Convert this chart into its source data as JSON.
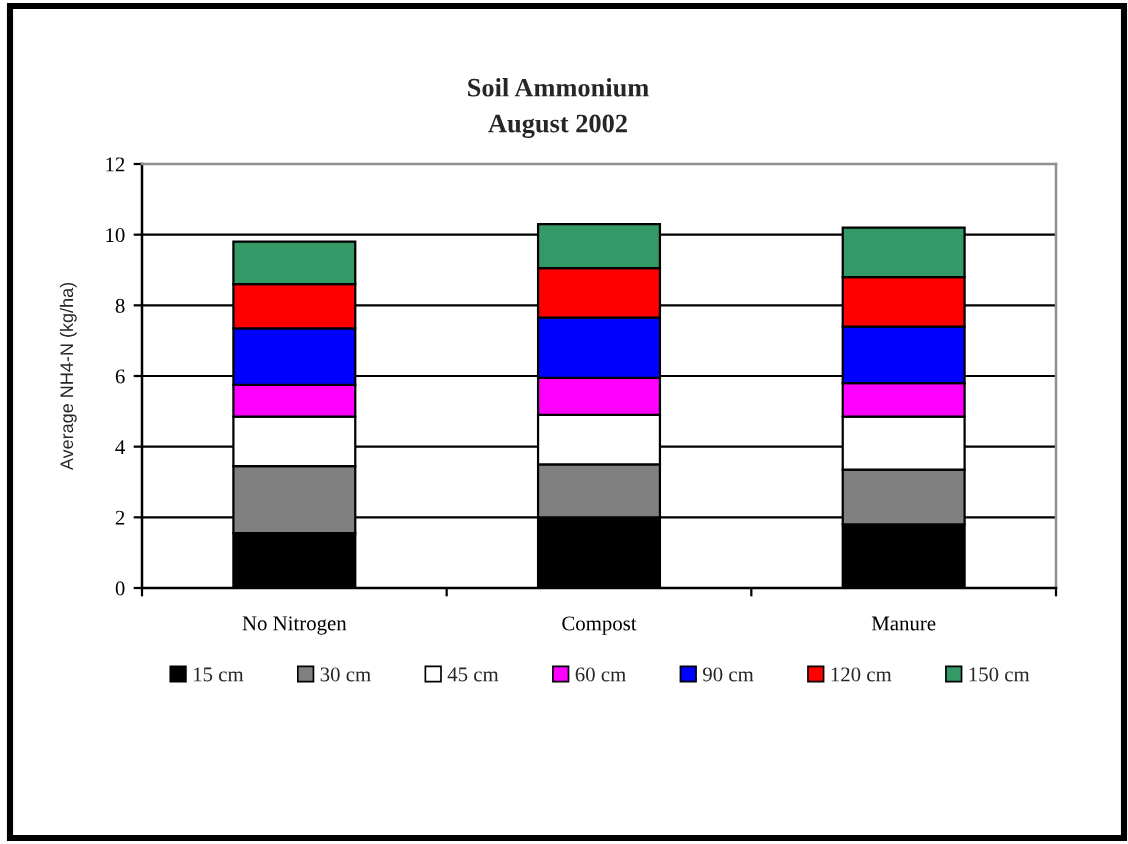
{
  "chart_data": {
    "type": "bar",
    "title": "Soil Ammonium",
    "subtitle": "August 2002",
    "ylabel": "Average NH4-N (kg/ha)",
    "categories": [
      "No Nitrogen",
      "Compost",
      "Manure"
    ],
    "stacked": true,
    "series": [
      {
        "name": "15 cm",
        "color": "#000000",
        "values": [
          1.55,
          2.0,
          1.8
        ]
      },
      {
        "name": "30 cm",
        "color": "#808080",
        "values": [
          1.9,
          1.5,
          1.55
        ]
      },
      {
        "name": "45 cm",
        "color": "#ffffff",
        "values": [
          1.4,
          1.4,
          1.5
        ]
      },
      {
        "name": "60 cm",
        "color": "#ff00ff",
        "values": [
          0.9,
          1.05,
          0.95
        ]
      },
      {
        "name": "90 cm",
        "color": "#0000ff",
        "values": [
          1.6,
          1.7,
          1.6
        ]
      },
      {
        "name": "120 cm",
        "color": "#ff0000",
        "values": [
          1.25,
          1.4,
          1.4
        ]
      },
      {
        "name": "150 cm",
        "color": "#339966",
        "values": [
          1.2,
          1.25,
          1.4
        ]
      }
    ],
    "ylim": [
      0,
      12
    ],
    "yticks": [
      0,
      2,
      4,
      6,
      8,
      10,
      12
    ],
    "grid": "y",
    "legend": "bottom"
  }
}
